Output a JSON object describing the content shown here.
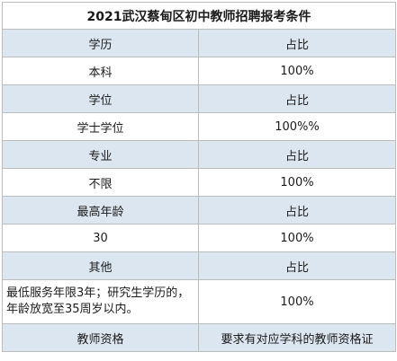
{
  "title": "2021武汉蔡甸区初中教师招聘报考条件",
  "rows": [
    {
      "type": "hdr",
      "left": "学历",
      "right": "占比"
    },
    {
      "type": "val",
      "left": "本科",
      "right": "100%"
    },
    {
      "type": "hdr",
      "left": "学位",
      "right": "占比"
    },
    {
      "type": "val",
      "left": "学士学位",
      "right": "100%%"
    },
    {
      "type": "hdr",
      "left": "专业",
      "right": "占比"
    },
    {
      "type": "val",
      "left": "不限",
      "right": "100%"
    },
    {
      "type": "hdr",
      "left": "最高年龄",
      "right": "占比"
    },
    {
      "type": "val",
      "left": "30",
      "right": "100%"
    },
    {
      "type": "hdr",
      "left": "其他",
      "right": "占比"
    },
    {
      "type": "tall",
      "left": "最低服务年限3年；研究生学历的，年龄放宽至35周岁以内。",
      "right": "100%"
    },
    {
      "type": "last",
      "left": "教师资格",
      "right": "要求有对应学科的教师资格证"
    }
  ],
  "colors": {
    "header_fill": "#dce6f1",
    "border": "#bcbcbc"
  }
}
